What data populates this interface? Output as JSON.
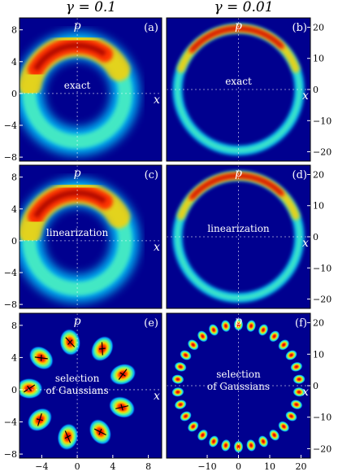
{
  "columns": [
    {
      "title": "γ = 0.1",
      "x_ticks": [
        "−4",
        "0",
        "4",
        "8"
      ],
      "y_ticks": [
        "8",
        "4",
        "0",
        "−4",
        "−8"
      ]
    },
    {
      "title": "γ = 0.01",
      "x_ticks": [
        "−10",
        "0",
        "10",
        "20"
      ],
      "y_ticks": [
        "20",
        "10",
        "0",
        "−10",
        "−20"
      ]
    }
  ],
  "axis_labels": {
    "x": "x",
    "p": "p"
  },
  "chart_data": [
    {
      "type": "heatmap",
      "tag": "(a)",
      "center_label": [
        "exact"
      ],
      "gamma": "0.1",
      "xlim": [
        -6.5,
        9.5
      ],
      "ylim": [
        -8.5,
        9.5
      ],
      "ring_radius": 5.4,
      "ring_width": 1.3,
      "hot_angle_deg": 100,
      "gaussians": 0
    },
    {
      "type": "heatmap",
      "tag": "(b)",
      "center_label": [
        "exact"
      ],
      "gamma": "0.01",
      "xlim": [
        -23,
        23
      ],
      "ylim": [
        -23,
        23
      ],
      "ring_radius": 19.5,
      "ring_width": 1.3,
      "hot_angle_deg": 90,
      "gaussians": 0
    },
    {
      "type": "heatmap",
      "tag": "(c)",
      "center_label": [
        "linearization"
      ],
      "gamma": "0.1",
      "xlim": [
        -6.5,
        9.5
      ],
      "ylim": [
        -8.5,
        9.5
      ],
      "ring_radius": 5.4,
      "ring_width": 1.3,
      "hot_angle_deg": 100,
      "gaussians": 0
    },
    {
      "type": "heatmap",
      "tag": "(d)",
      "center_label": [
        "linearization"
      ],
      "gamma": "0.01",
      "xlim": [
        -23,
        23
      ],
      "ylim": [
        -23,
        23
      ],
      "ring_radius": 19.5,
      "ring_width": 1.3,
      "hot_angle_deg": 90,
      "gaussians": 0
    },
    {
      "type": "heatmap",
      "tag": "(e)",
      "center_label": [
        "selection",
        "of Gaussians"
      ],
      "gamma": "0.1",
      "xlim": [
        -6.5,
        9.5
      ],
      "ylim": [
        -8.5,
        9.5
      ],
      "ring_radius": 5.4,
      "ring_width": 1.3,
      "hot_angle_deg": 100,
      "gaussians": 9
    },
    {
      "type": "heatmap",
      "tag": "(f)",
      "center_label": [
        "selection",
        "of Gaussians"
      ],
      "gamma": "0.01",
      "xlim": [
        -23,
        23
      ],
      "ylim": [
        -23,
        23
      ],
      "ring_radius": 19.5,
      "ring_width": 1.3,
      "hot_angle_deg": 90,
      "gaussians": 30
    }
  ],
  "colors": {
    "background": "#00008f",
    "axis_line": "#ffffff"
  }
}
